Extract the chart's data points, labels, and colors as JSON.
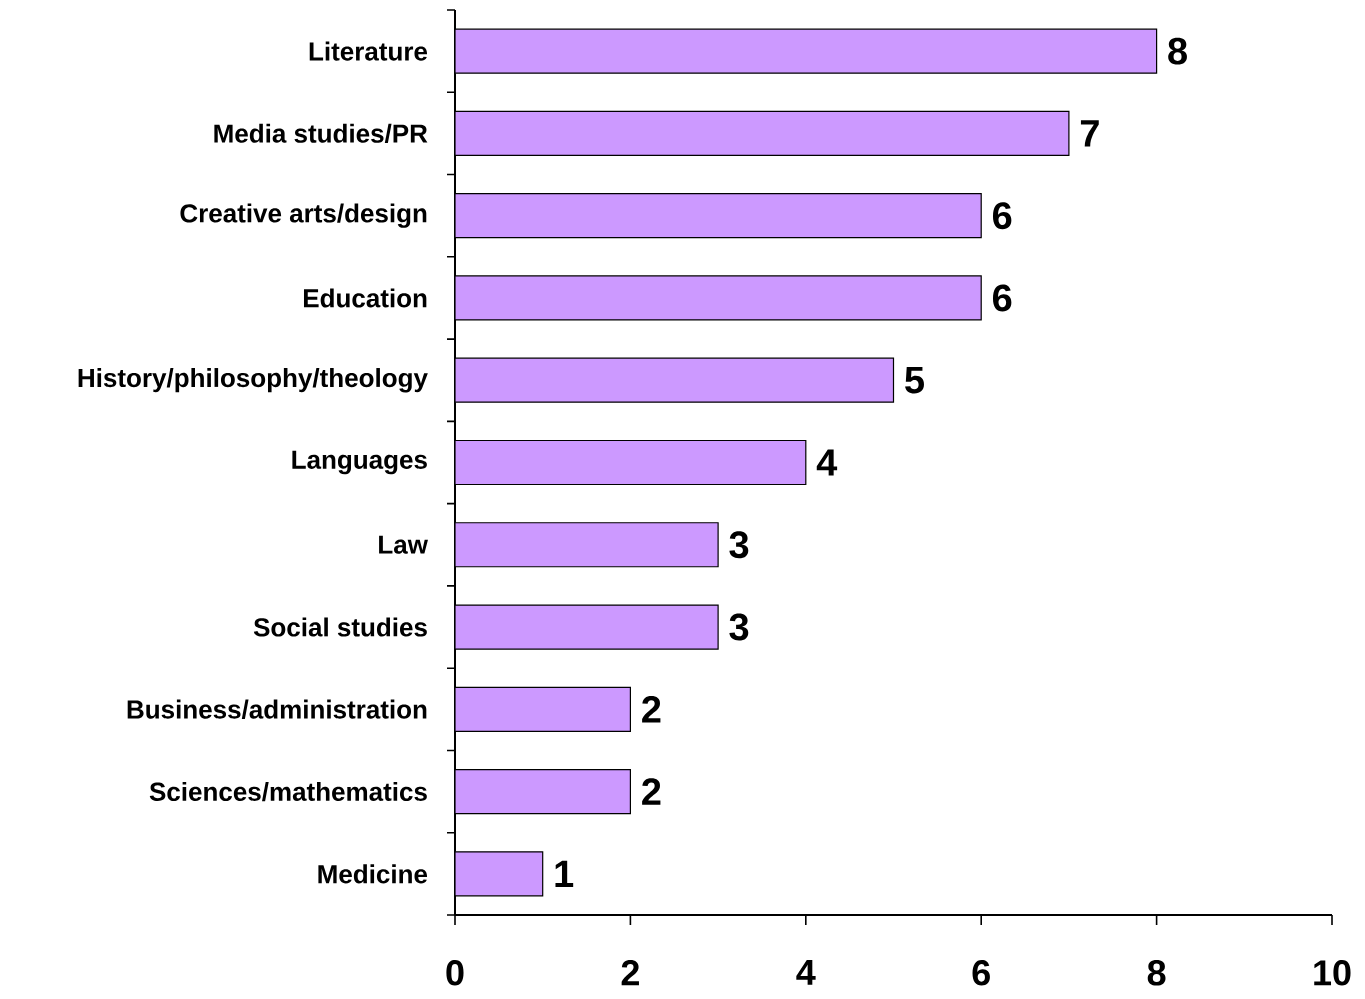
{
  "chart_data": {
    "type": "bar",
    "orientation": "horizontal",
    "categories": [
      "Literature",
      "Media studies/PR",
      "Creative arts/design",
      "Education",
      "History/philosophy/theology",
      "Languages",
      "Law",
      "Social studies",
      "Business/administration",
      "Sciences/mathematics",
      "Medicine"
    ],
    "values": [
      8,
      7,
      6,
      6,
      5,
      4,
      3,
      3,
      2,
      2,
      1
    ],
    "color": "#cc99ff",
    "xlim": [
      0,
      10
    ],
    "xticks": [
      0,
      2,
      4,
      6,
      8,
      10
    ],
    "data_labels": true
  }
}
